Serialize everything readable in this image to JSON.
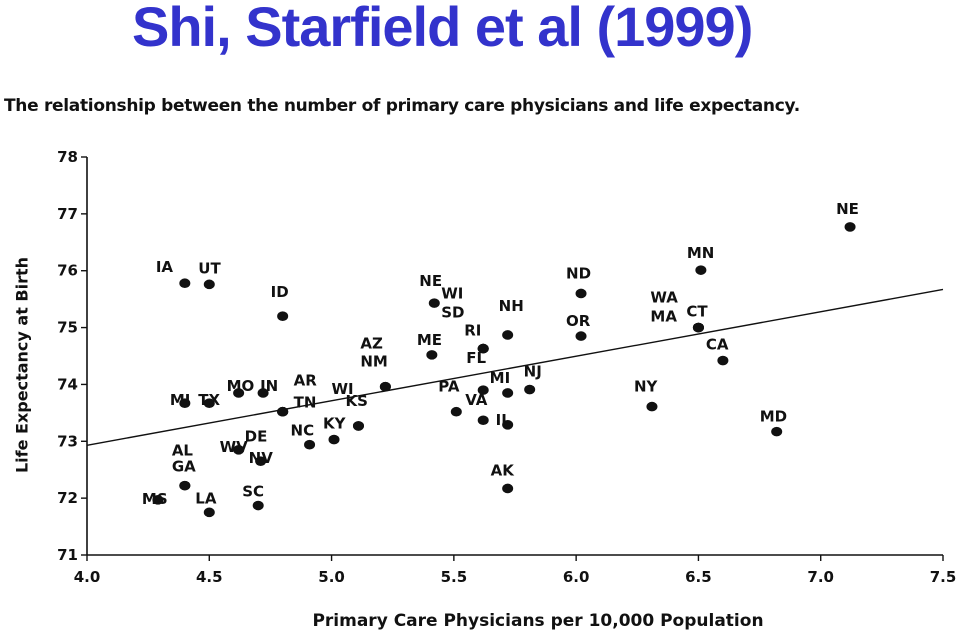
{
  "slide": {
    "title": "Shi, Starfield et al (1999)"
  },
  "chart_data": {
    "type": "scatter",
    "title": "The relationship between the number of primary care physicians and life expectancy.",
    "xlabel": "Primary Care Physicians per 10,000 Population",
    "ylabel": "Life Expectancy at Birth",
    "xlim": [
      4.0,
      7.5
    ],
    "ylim": [
      71,
      78
    ],
    "xticks": [
      "4.0",
      "4.5",
      "5.0",
      "5.5",
      "6.0",
      "6.5",
      "7.0",
      "7.5"
    ],
    "yticks": [
      "71",
      "72",
      "73",
      "74",
      "75",
      "76",
      "77",
      "78"
    ],
    "grid": false,
    "trendline": {
      "x": [
        4.0,
        7.5
      ],
      "y": [
        72.93,
        75.67
      ]
    },
    "colors": {
      "points": "#111111",
      "line": "#111111"
    },
    "points": [
      {
        "label": "IA",
        "x": 4.4,
        "y": 75.78
      },
      {
        "label": "UT",
        "x": 4.5,
        "y": 75.76
      },
      {
        "label": "ID",
        "x": 4.8,
        "y": 75.2
      },
      {
        "label": "MI",
        "x": 4.4,
        "y": 73.67
      },
      {
        "label": "TX",
        "x": 4.5,
        "y": 73.67
      },
      {
        "label": "MO",
        "x": 4.62,
        "y": 73.85
      },
      {
        "label": "IN",
        "x": 4.72,
        "y": 73.85
      },
      {
        "label": "DE",
        "x": 4.8,
        "y": 73.52
      },
      {
        "label": "WV",
        "x": 4.62,
        "y": 72.85
      },
      {
        "label": "NV",
        "x": 4.71,
        "y": 72.65
      },
      {
        "label": "AL",
        "x": 4.4,
        "y": 72.22
      },
      {
        "label": "GA",
        "x": 4.4,
        "y": 72.22
      },
      {
        "label": "MS",
        "x": 4.29,
        "y": 71.97
      },
      {
        "label": "LA",
        "x": 4.5,
        "y": 71.75
      },
      {
        "label": "SC",
        "x": 4.7,
        "y": 71.87
      },
      {
        "label": "AR",
        "x": 4.8,
        "y": 73.52
      },
      {
        "label": "TN",
        "x": 4.8,
        "y": 73.52
      },
      {
        "label": "NC",
        "x": 4.91,
        "y": 72.94
      },
      {
        "label": "KY",
        "x": 5.01,
        "y": 73.03
      },
      {
        "label": "KS",
        "x": 5.11,
        "y": 73.27
      },
      {
        "label": "WI",
        "x": 5.11,
        "y": 73.27
      },
      {
        "label": "AZ",
        "x": 5.22,
        "y": 73.96
      },
      {
        "label": "NM",
        "x": 5.22,
        "y": 73.96
      },
      {
        "label": "NE",
        "x": 5.42,
        "y": 75.43
      },
      {
        "label": "ME",
        "x": 5.41,
        "y": 74.52
      },
      {
        "label": "WI",
        "x": 5.62,
        "y": 74.63
      },
      {
        "label": "SD",
        "x": 5.62,
        "y": 74.63
      },
      {
        "label": "RI",
        "x": 5.62,
        "y": 74.63
      },
      {
        "label": "NH",
        "x": 5.72,
        "y": 74.87
      },
      {
        "label": "FL",
        "x": 5.62,
        "y": 73.9
      },
      {
        "label": "MI",
        "x": 5.72,
        "y": 73.85
      },
      {
        "label": "NJ",
        "x": 5.81,
        "y": 73.91
      },
      {
        "label": "PA",
        "x": 5.51,
        "y": 73.52
      },
      {
        "label": "VA",
        "x": 5.62,
        "y": 73.37
      },
      {
        "label": "IL",
        "x": 5.72,
        "y": 73.29
      },
      {
        "label": "AK",
        "x": 5.72,
        "y": 72.17
      },
      {
        "label": "ND",
        "x": 6.02,
        "y": 75.6
      },
      {
        "label": "OR",
        "x": 6.02,
        "y": 74.85
      },
      {
        "label": "NY",
        "x": 6.31,
        "y": 73.61
      },
      {
        "label": "MN",
        "x": 6.51,
        "y": 76.01
      },
      {
        "label": "WA",
        "x": 6.5,
        "y": 75.0
      },
      {
        "label": "MA",
        "x": 6.5,
        "y": 75.0
      },
      {
        "label": "CT",
        "x": 6.5,
        "y": 75.0
      },
      {
        "label": "CA",
        "x": 6.6,
        "y": 74.42
      },
      {
        "label": "MD",
        "x": 6.82,
        "y": 73.17
      },
      {
        "label": "NE",
        "x": 7.12,
        "y": 76.77
      }
    ]
  }
}
